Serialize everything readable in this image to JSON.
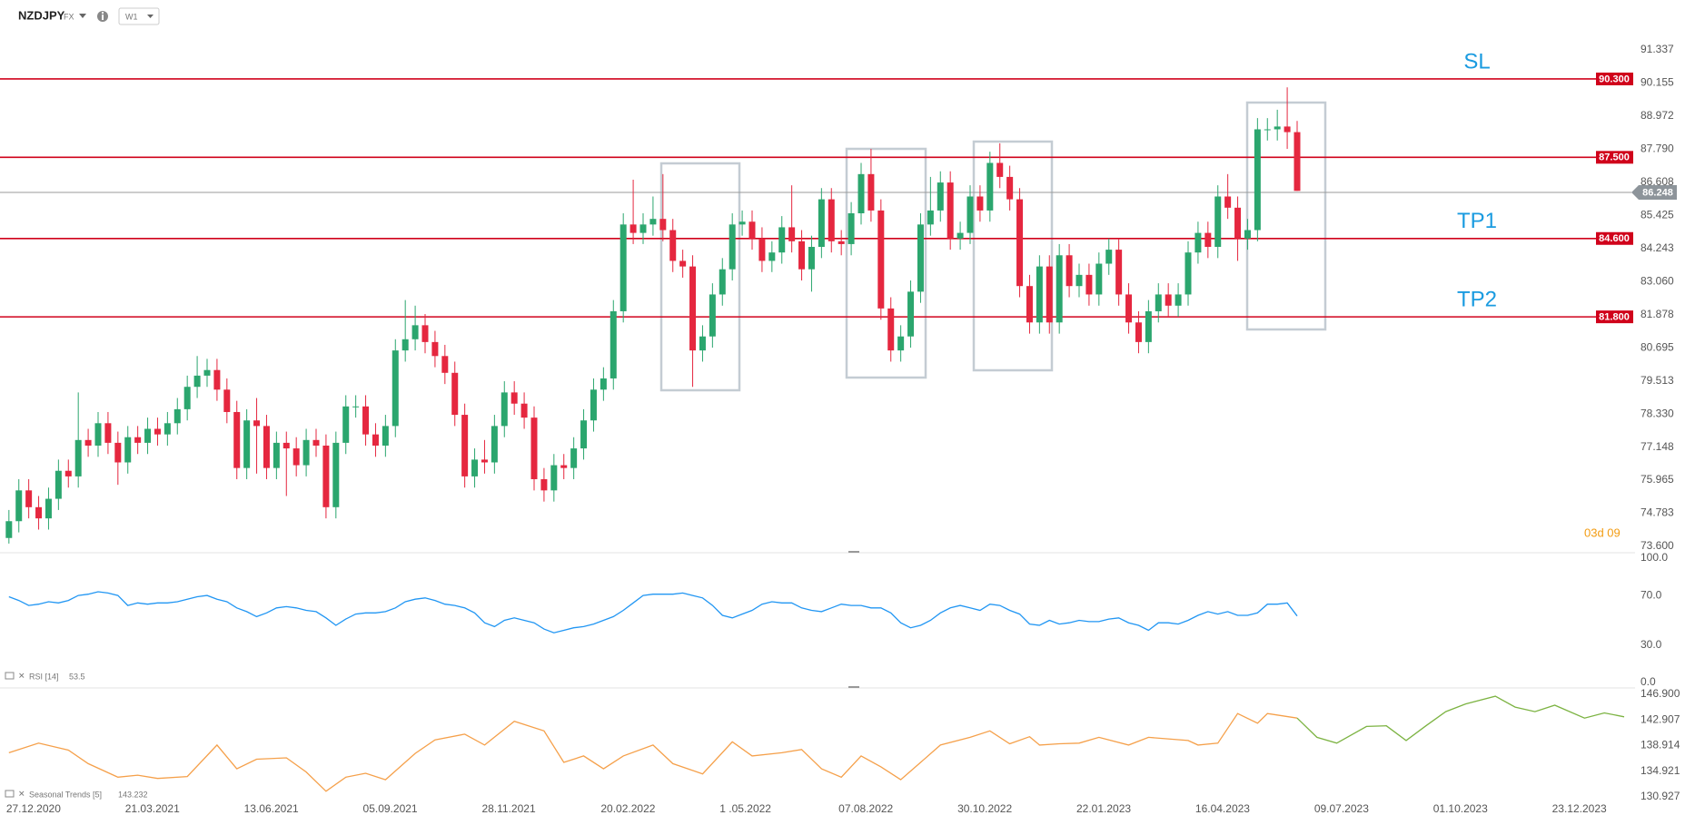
{
  "header": {
    "symbol": "NZDJPY",
    "market": "FX",
    "timeframe": "W1"
  },
  "chart_data": [
    {
      "type": "candlestick",
      "xlim": [
        -0.9,
        164.1
      ],
      "xticks": [
        {
          "value": 0,
          "label": "27.12.2020"
        },
        {
          "value": 12,
          "label": "21.03.2021"
        },
        {
          "value": 24,
          "label": "13.06.2021"
        },
        {
          "value": 36,
          "label": "05.09.2021"
        },
        {
          "value": 48,
          "label": "28.11.2021"
        },
        {
          "value": 60,
          "label": "20.02.2022"
        },
        {
          "value": 72,
          "label": "1 .05.2022"
        },
        {
          "value": 84,
          "label": "07.08.2022"
        },
        {
          "value": 96,
          "label": "30.10.2022"
        },
        {
          "value": 108,
          "label": "22.01.2023"
        },
        {
          "value": 120,
          "label": "16.04.2023"
        },
        {
          "value": 132,
          "label": "09.07.2023"
        },
        {
          "value": 144,
          "label": "01.10.2023"
        },
        {
          "value": 156,
          "label": "23.12.2023"
        }
      ],
      "ylim": [
        73.6,
        91.337
      ],
      "yticks": [
        91.337,
        90.155,
        88.972,
        {
          "value": 87.79,
          "label": "87.790"
        },
        86.608,
        85.425,
        84.243,
        {
          "value": 83.06,
          "label": "83.060"
        },
        81.878,
        80.695,
        79.513,
        {
          "value": 78.33,
          "label": "78.330"
        },
        77.148,
        75.965,
        74.783,
        {
          "value": 73.6,
          "label": "73.600"
        }
      ],
      "up_color": "#2ba66e",
      "down_color": "#e5273f",
      "open": [
        73.9,
        74.5,
        75.6,
        75.0,
        74.6,
        75.3,
        76.3,
        76.1,
        77.4,
        77.2,
        78.0,
        77.3,
        76.6,
        77.5,
        77.3,
        77.8,
        77.6,
        78.0,
        78.5,
        79.3,
        79.7,
        79.9,
        79.2,
        78.4,
        76.4,
        78.1,
        77.9,
        76.4,
        77.3,
        77.1,
        76.5,
        77.4,
        77.2,
        75.0,
        77.3,
        78.6,
        78.6,
        77.6,
        77.2,
        77.9,
        80.6,
        81.0,
        81.5,
        80.9,
        80.4,
        79.8,
        78.3,
        76.1,
        76.7,
        76.6,
        77.9,
        79.1,
        78.7,
        78.2,
        76.0,
        75.6,
        76.5,
        76.4,
        77.1,
        78.1,
        79.2,
        79.6,
        82.0,
        85.1,
        84.8,
        85.1,
        85.3,
        84.9,
        83.8,
        83.6,
        80.6,
        81.1,
        82.6,
        83.5,
        85.1,
        85.2,
        84.6,
        83.8,
        84.1,
        85.0,
        84.5,
        83.5,
        84.3,
        86.0,
        84.5,
        84.4,
        85.5,
        86.9,
        85.6,
        82.1,
        80.6,
        81.1,
        82.7,
        85.1,
        85.6,
        86.6,
        84.6,
        84.8,
        86.1,
        85.6,
        87.3,
        86.8,
        86.0,
        82.9,
        81.6,
        83.6,
        81.6,
        84.0,
        82.9,
        83.3,
        82.6,
        83.7,
        84.2,
        82.6,
        81.6,
        80.9,
        82.0,
        82.6,
        82.2,
        82.6,
        84.1,
        84.8,
        84.3,
        86.1,
        85.7,
        84.6,
        84.9,
        88.5,
        88.5,
        88.6,
        88.4
      ],
      "high": [
        74.9,
        76.0,
        76.0,
        75.4,
        75.7,
        76.7,
        76.7,
        79.1,
        77.8,
        78.4,
        78.4,
        77.7,
        77.9,
        77.9,
        78.2,
        78.2,
        78.4,
        78.9,
        79.7,
        80.4,
        80.3,
        80.3,
        79.6,
        78.8,
        78.5,
        78.9,
        78.3,
        77.7,
        77.7,
        77.5,
        77.8,
        77.8,
        77.6,
        77.7,
        79.0,
        79.0,
        79.0,
        78.0,
        78.3,
        81.0,
        82.4,
        82.2,
        81.9,
        81.3,
        80.8,
        80.2,
        78.7,
        77.1,
        77.4,
        78.3,
        79.5,
        79.5,
        79.1,
        78.6,
        76.4,
        76.9,
        76.9,
        77.5,
        78.5,
        79.6,
        80.0,
        82.4,
        85.5,
        86.7,
        85.5,
        86.1,
        86.9,
        85.3,
        84.2,
        84.0,
        81.5,
        83.0,
        83.9,
        85.5,
        85.6,
        85.6,
        85.0,
        84.5,
        85.4,
        86.5,
        84.9,
        84.7,
        86.4,
        86.4,
        84.9,
        85.9,
        87.3,
        87.8,
        86.0,
        82.5,
        81.5,
        83.1,
        85.5,
        86.8,
        87.0,
        87.0,
        85.2,
        86.5,
        86.5,
        87.7,
        88.0,
        87.2,
        86.4,
        83.3,
        84.0,
        84.0,
        84.4,
        84.4,
        83.7,
        83.7,
        84.1,
        84.6,
        84.6,
        83.0,
        82.0,
        82.4,
        83.0,
        83.0,
        83.0,
        84.5,
        85.2,
        85.2,
        86.5,
        86.9,
        86.1,
        85.3,
        88.9,
        88.9,
        89.2,
        90.0,
        88.8
      ],
      "low": [
        73.7,
        74.1,
        74.6,
        74.2,
        74.2,
        74.9,
        75.7,
        75.7,
        76.8,
        76.8,
        76.9,
        75.8,
        76.2,
        76.9,
        76.9,
        77.2,
        77.2,
        77.6,
        78.1,
        78.9,
        79.3,
        78.8,
        78.0,
        76.0,
        76.0,
        76.2,
        76.0,
        76.0,
        75.4,
        76.1,
        76.1,
        76.8,
        74.6,
        74.6,
        76.9,
        78.2,
        77.2,
        76.8,
        76.8,
        77.5,
        80.2,
        80.6,
        80.5,
        80.0,
        79.4,
        77.9,
        75.7,
        75.7,
        76.2,
        76.2,
        77.5,
        78.3,
        77.8,
        75.6,
        75.2,
        75.2,
        76.0,
        76.0,
        76.7,
        77.7,
        78.8,
        79.2,
        81.6,
        84.4,
        84.4,
        84.7,
        84.5,
        83.4,
        83.2,
        79.3,
        80.2,
        80.7,
        82.2,
        83.1,
        84.7,
        84.2,
        83.4,
        83.4,
        83.7,
        84.1,
        83.1,
        82.7,
        83.9,
        84.1,
        84.0,
        84.0,
        85.1,
        85.2,
        81.7,
        80.2,
        80.2,
        80.7,
        82.3,
        84.7,
        85.2,
        84.2,
        84.2,
        84.4,
        85.2,
        85.2,
        86.4,
        85.6,
        82.5,
        81.2,
        81.2,
        81.2,
        81.2,
        82.5,
        82.5,
        82.2,
        82.2,
        83.3,
        82.2,
        81.2,
        80.5,
        80.5,
        81.6,
        81.8,
        81.8,
        82.2,
        83.7,
        83.9,
        83.9,
        85.3,
        83.8,
        84.2,
        84.5,
        88.1,
        88.1,
        87.8,
        86.3
      ],
      "close": [
        74.5,
        75.6,
        75.0,
        74.6,
        75.3,
        76.3,
        76.1,
        77.4,
        77.2,
        78.0,
        77.3,
        76.6,
        77.5,
        77.3,
        77.8,
        77.6,
        78.0,
        78.5,
        79.3,
        79.7,
        79.9,
        79.2,
        78.4,
        76.4,
        78.1,
        77.9,
        76.4,
        77.3,
        77.1,
        76.5,
        77.4,
        77.2,
        75.0,
        77.3,
        78.6,
        78.6,
        77.6,
        77.2,
        77.9,
        80.6,
        81.0,
        81.5,
        80.9,
        80.4,
        79.8,
        78.3,
        76.1,
        76.7,
        76.6,
        77.9,
        79.1,
        78.7,
        78.2,
        76.0,
        75.6,
        76.5,
        76.4,
        77.1,
        78.1,
        79.2,
        79.6,
        82.0,
        85.1,
        84.8,
        85.1,
        85.3,
        84.9,
        83.8,
        83.6,
        80.6,
        81.1,
        82.6,
        83.5,
        85.1,
        85.2,
        84.6,
        83.8,
        84.1,
        85.0,
        84.5,
        83.5,
        84.3,
        86.0,
        84.5,
        84.4,
        85.5,
        86.9,
        85.6,
        82.1,
        80.6,
        81.1,
        82.7,
        85.1,
        85.6,
        86.6,
        84.6,
        84.8,
        86.1,
        85.6,
        87.3,
        86.8,
        86.0,
        82.9,
        81.6,
        83.6,
        81.6,
        84.0,
        82.9,
        83.3,
        82.6,
        83.7,
        84.2,
        82.6,
        81.6,
        80.9,
        82.0,
        82.6,
        82.2,
        82.6,
        84.1,
        84.8,
        84.3,
        86.1,
        85.7,
        84.6,
        84.9,
        88.5,
        88.5,
        88.6,
        88.4,
        86.3
      ],
      "levels": [
        {
          "value": 90.3,
          "label": "90.300",
          "note": "SL"
        },
        {
          "value": 87.5,
          "label": "87.500"
        },
        {
          "value": 84.6,
          "label": "84.600",
          "note": "TP1"
        },
        {
          "value": 81.8,
          "label": "81.800",
          "note": "TP2"
        }
      ],
      "level_color": "#d0021b",
      "current_price": {
        "value": 86.248,
        "label": "86.248"
      },
      "countdown": "03d 09"
    },
    {
      "type": "line",
      "title": "RSI [14]",
      "current_label": "53.5",
      "ylim": [
        0,
        100
      ],
      "yticks": [
        {
          "value": 100,
          "label": "100.0"
        },
        {
          "value": 70,
          "label": "70.0"
        },
        {
          "value": 30,
          "label": "30.0"
        },
        {
          "value": 0,
          "label": "0.0"
        }
      ],
      "series": [
        {
          "color": "#2196f3",
          "values": [
            69,
            66,
            62,
            63,
            65,
            64,
            66,
            70,
            71,
            73,
            72,
            70,
            62,
            64,
            63,
            64,
            64,
            65,
            67,
            69,
            70,
            67,
            65,
            60,
            57,
            53,
            56,
            60,
            61,
            60,
            58,
            57,
            52,
            46,
            51,
            55,
            56,
            56,
            57,
            60,
            65,
            67,
            68,
            66,
            63,
            62,
            60,
            56,
            48,
            45,
            50,
            52,
            50,
            48,
            43,
            40,
            42,
            44,
            45,
            47,
            50,
            53,
            58,
            64,
            70,
            71,
            71,
            71,
            72,
            70,
            68,
            62,
            54,
            52,
            55,
            58,
            63,
            65,
            64,
            64,
            60,
            58,
            57,
            60,
            63,
            62,
            62,
            60,
            60,
            56,
            48,
            44,
            46,
            50,
            56,
            60,
            62,
            60,
            58,
            63,
            62,
            58,
            55,
            47,
            46,
            50,
            47,
            48,
            50,
            49,
            49,
            51,
            52,
            48,
            46,
            42,
            48,
            48,
            47,
            50,
            54,
            57,
            55,
            57,
            54,
            54,
            56,
            63,
            63,
            64,
            53.5
          ]
        }
      ]
    },
    {
      "type": "line",
      "title": "Seasonal Trends [5]",
      "current_label": "143.232",
      "ylim": [
        130.927,
        146.9
      ],
      "yticks": [
        {
          "value": 146.9,
          "label": "146.900"
        },
        142.907,
        138.914,
        134.921,
        130.927
      ],
      "series": [
        {
          "color": "#f5a04a",
          "x": [
            0,
            3,
            6,
            8,
            11,
            13,
            15,
            18,
            21,
            23,
            25,
            28,
            30,
            32,
            34,
            36,
            38,
            41,
            43,
            46,
            48,
            51,
            54,
            56,
            58,
            60,
            62,
            65,
            67,
            70,
            73,
            75,
            78,
            80,
            82,
            84,
            86,
            88,
            90,
            92,
            94,
            97,
            99,
            101,
            103,
            104,
            106,
            108,
            110,
            113,
            115,
            119,
            120,
            122,
            124,
            126,
            127,
            130
          ],
          "values": [
            137.8,
            139.3,
            138.2,
            136.1,
            134.0,
            134.3,
            133.8,
            134.1,
            139.0,
            135.3,
            136.8,
            137.0,
            134.8,
            131.8,
            134.0,
            134.6,
            133.6,
            137.7,
            139.8,
            140.7,
            139.0,
            142.7,
            141.2,
            136.3,
            137.3,
            135.3,
            137.3,
            139.0,
            136.1,
            134.5,
            139.5,
            137.3,
            137.8,
            138.3,
            135.3,
            134.0,
            137.3,
            135.6,
            133.6,
            136.3,
            139.0,
            140.2,
            141.2,
            139.2,
            140.3,
            139.0,
            139.2,
            139.3,
            140.2,
            139.0,
            140.2,
            139.7,
            139.0,
            139.3,
            143.9,
            142.4,
            143.9,
            143.2
          ]
        },
        {
          "color": "#7cb342",
          "x": [
            130,
            132,
            134,
            137,
            139,
            141,
            143,
            145,
            147,
            150,
            152,
            154,
            156,
            159,
            161,
            163
          ],
          "values": [
            143.2,
            140.2,
            139.3,
            141.9,
            142.0,
            139.7,
            142.0,
            144.2,
            145.4,
            146.6,
            144.9,
            144.2,
            145.2,
            143.2,
            144.0,
            143.4
          ]
        }
      ]
    }
  ]
}
